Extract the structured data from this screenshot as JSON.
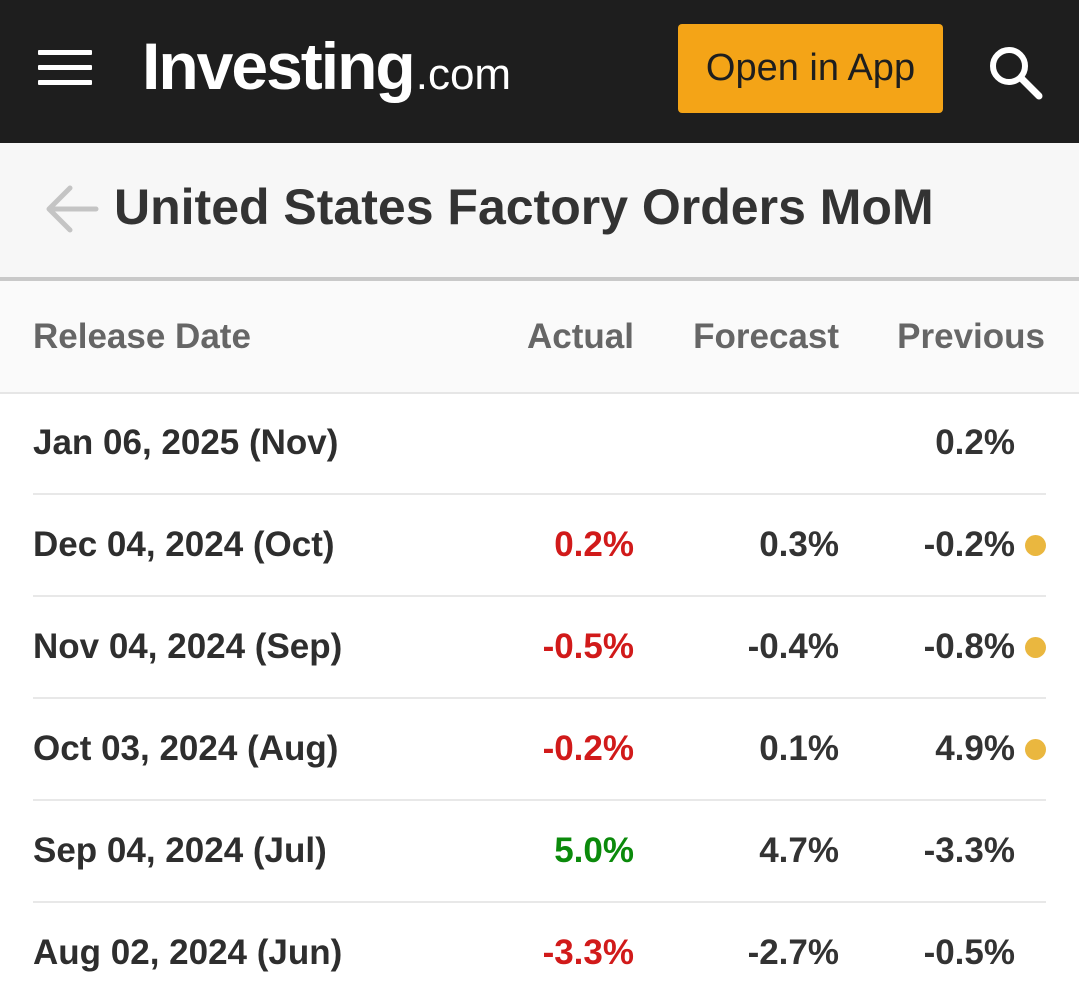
{
  "header": {
    "logo_main": "Investing",
    "logo_domain": ".com",
    "open_app_label": "Open in App"
  },
  "title_bar": {
    "title": "United States Factory Orders MoM"
  },
  "table": {
    "columns": [
      "Release Date",
      "Actual",
      "Forecast",
      "Previous"
    ],
    "rows": [
      {
        "date": "Jan 06, 2025 (Nov)",
        "actual": "",
        "actual_tone": "",
        "forecast": "",
        "previous": "0.2%",
        "revised": false
      },
      {
        "date": "Dec 04, 2024 (Oct)",
        "actual": "0.2%",
        "actual_tone": "neg",
        "forecast": "0.3%",
        "previous": "-0.2%",
        "revised": true
      },
      {
        "date": "Nov 04, 2024 (Sep)",
        "actual": "-0.5%",
        "actual_tone": "neg",
        "forecast": "-0.4%",
        "previous": "-0.8%",
        "revised": true
      },
      {
        "date": "Oct 03, 2024 (Aug)",
        "actual": "-0.2%",
        "actual_tone": "neg",
        "forecast": "0.1%",
        "previous": "4.9%",
        "revised": true
      },
      {
        "date": "Sep 04, 2024 (Jul)",
        "actual": "5.0%",
        "actual_tone": "pos",
        "forecast": "4.7%",
        "previous": "-3.3%",
        "revised": false
      },
      {
        "date": "Aug 02, 2024 (Jun)",
        "actual": "-3.3%",
        "actual_tone": "neg",
        "forecast": "-2.7%",
        "previous": "-0.5%",
        "revised": false
      }
    ]
  },
  "colors": {
    "header_bg": "#1e1e1e",
    "accent": "#f4a417",
    "negative": "#d11a1a",
    "positive": "#0b8a0b",
    "revised_dot": "#eab73f"
  },
  "icons": {
    "menu": "hamburger-icon",
    "search": "search-icon",
    "back": "back-arrow-icon",
    "revised": "revised-dot-icon"
  }
}
